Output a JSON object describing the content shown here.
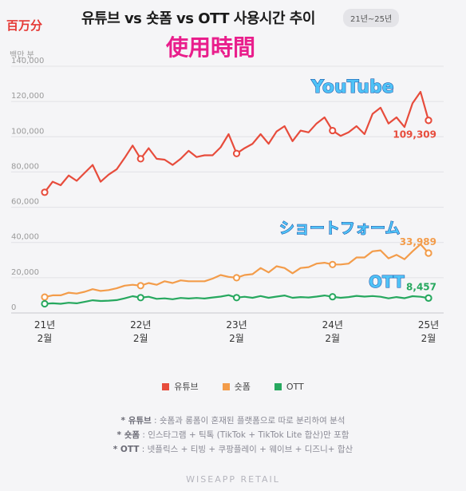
{
  "header": {
    "unit_badge": "百万分",
    "title": "유튜브 vs 숏폼 vs OTT 사용시간 추이",
    "period_badge": "21년~25년",
    "subtitle_cjk": "使用時間"
  },
  "overlays": {
    "youtube": "YouTube",
    "shortform": "ショートフォーム",
    "ott": "OTT"
  },
  "legend": [
    {
      "label": "유튜브",
      "color": "#e74c3c"
    },
    {
      "label": "숏폼",
      "color": "#f39c4a"
    },
    {
      "label": "OTT",
      "color": "#27a85f"
    }
  ],
  "footnotes": [
    {
      "key": "* 유튜브",
      "text": " : 숏폼과 롱폼이 혼재된 플랫폼으로 따로 분리하여 분석"
    },
    {
      "key": "* 숏폼",
      "text": " : 인스타그램 + 틱톡 (TikTok + TikTok Lite 합산)만 포함"
    },
    {
      "key": "* OTT",
      "text": " : 넷플릭스 + 티빙 + 쿠팡플레이 + 웨이브 + 디즈니+ 합산"
    }
  ],
  "footer_brand": "WISEAPP  RETAIL",
  "chart_data": {
    "type": "line",
    "ylabel": "백만 분",
    "ylim": [
      0,
      140000
    ],
    "yticks": [
      "0",
      "20,000",
      "40,000",
      "60,000",
      "80,000",
      "100,000",
      "120,000",
      "140,000"
    ],
    "xtick_labels": [
      {
        "line1": "21년",
        "line2": "2월"
      },
      {
        "line1": "22년",
        "line2": "2월"
      },
      {
        "line1": "23년",
        "line2": "2월"
      },
      {
        "line1": "24년",
        "line2": "2월"
      },
      {
        "line1": "25년",
        "line2": "2월"
      }
    ],
    "xtick_index": [
      0,
      12,
      24,
      36,
      48
    ],
    "grid": true,
    "legend_position": "bottom",
    "series": [
      {
        "name": "유튜브",
        "color": "#e74c3c",
        "end_label": "109,309",
        "values": [
          68500,
          74500,
          72500,
          78000,
          75000,
          79500,
          84000,
          74500,
          78500,
          81500,
          88000,
          95000,
          87500,
          93500,
          87500,
          87000,
          84000,
          87500,
          92000,
          88500,
          89500,
          89500,
          94000,
          101500,
          90500,
          93500,
          96000,
          101500,
          96000,
          103000,
          106000,
          97500,
          103500,
          102500,
          107500,
          111000,
          103500,
          100500,
          102500,
          106000,
          101500,
          113000,
          116500,
          107500,
          111000,
          105500,
          119000,
          125500,
          109309
        ]
      },
      {
        "name": "숏폼",
        "color": "#f39c4a",
        "end_label": "33,989",
        "values": [
          9000,
          10000,
          10000,
          11500,
          11000,
          12000,
          13500,
          12500,
          13000,
          14000,
          15500,
          16000,
          15500,
          17000,
          16000,
          18000,
          17000,
          18500,
          18000,
          18000,
          18000,
          19500,
          21500,
          20500,
          20000,
          21500,
          22000,
          25500,
          23000,
          26500,
          25500,
          22500,
          25500,
          26000,
          28000,
          28500,
          27500,
          27500,
          28000,
          31500,
          31500,
          35000,
          35500,
          31000,
          33000,
          30500,
          35000,
          39000,
          33989
        ]
      },
      {
        "name": "OTT",
        "color": "#27a85f",
        "end_label": "8,457",
        "values": [
          5200,
          5500,
          5200,
          5800,
          5500,
          6300,
          7200,
          6800,
          7000,
          7300,
          8300,
          9500,
          8700,
          9200,
          8000,
          8300,
          7800,
          8500,
          8200,
          8500,
          8200,
          8800,
          9300,
          10100,
          8700,
          9200,
          8600,
          9600,
          8600,
          9300,
          9900,
          8600,
          9000,
          8800,
          9300,
          9900,
          9200,
          8600,
          9000,
          9700,
          9300,
          9600,
          9200,
          8300,
          9000,
          8400,
          9500,
          9200,
          8457
        ]
      }
    ]
  }
}
